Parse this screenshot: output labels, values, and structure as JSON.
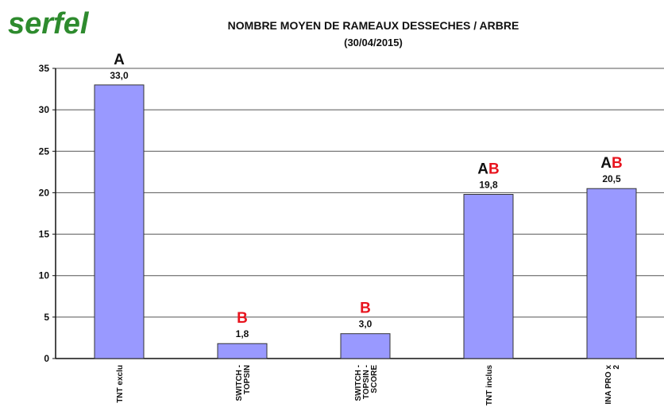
{
  "logo": "serfel",
  "chart_data": {
    "type": "bar",
    "title": "NOMBRE MOYEN DE RAMEAUX DESSECHES / ARBRE",
    "subtitle": "(30/04/2015)",
    "categories": [
      [
        "TNT exclu"
      ],
      [
        "SWITCH -",
        "TOPSIN"
      ],
      [
        "SWITCH -",
        "TOPSIN -",
        "SCORE"
      ],
      [
        "TNT inclus"
      ],
      [
        "INA PRO x",
        "2"
      ]
    ],
    "values": [
      33.0,
      1.8,
      3.0,
      19.8,
      20.5
    ],
    "value_labels": [
      "33,0",
      "1,8",
      "3,0",
      "19,8",
      "20,5"
    ],
    "groups": [
      [
        "A"
      ],
      [
        "B"
      ],
      [
        "B"
      ],
      [
        "A",
        "B"
      ],
      [
        "A",
        "B"
      ]
    ],
    "group_colors": {
      "A": "#111111",
      "B": "#e8141e"
    },
    "color": "#9999ff",
    "ylim": [
      0,
      35
    ],
    "yticks": [
      0,
      5,
      10,
      15,
      20,
      25,
      30,
      35
    ],
    "grid": true
  }
}
